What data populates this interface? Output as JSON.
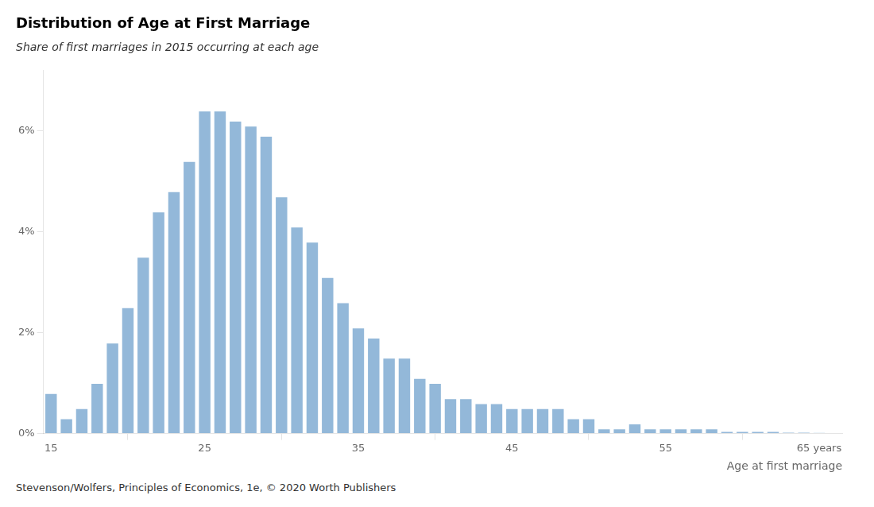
{
  "chart_data": {
    "type": "bar",
    "title": "Distribution of Age at First Marriage",
    "subtitle": "Share of first marriages in 2015 occurring at each age",
    "xlabel": "Age at first marriage",
    "footnote": "Stevenson/Wolfers, Principles of Economics, 1e, © 2020 Worth Publishers",
    "color": "#93b8d9",
    "x": [
      15,
      16,
      17,
      18,
      19,
      20,
      21,
      22,
      23,
      24,
      25,
      26,
      27,
      28,
      29,
      30,
      31,
      32,
      33,
      34,
      35,
      36,
      37,
      38,
      39,
      40,
      41,
      42,
      43,
      44,
      45,
      46,
      47,
      48,
      49,
      50,
      51,
      52,
      53,
      54,
      55,
      56,
      57,
      58,
      59,
      60,
      61,
      62,
      63,
      64,
      65
    ],
    "values": [
      0.008,
      0.003,
      0.005,
      0.01,
      0.018,
      0.025,
      0.035,
      0.044,
      0.048,
      0.054,
      0.064,
      0.064,
      0.062,
      0.061,
      0.059,
      0.047,
      0.041,
      0.038,
      0.031,
      0.026,
      0.021,
      0.019,
      0.015,
      0.015,
      0.011,
      0.01,
      0.007,
      0.007,
      0.006,
      0.006,
      0.005,
      0.005,
      0.005,
      0.005,
      0.003,
      0.003,
      0.001,
      0.001,
      0.002,
      0.001,
      0.001,
      0.001,
      0.001,
      0.001,
      0.0005,
      0.0005,
      0.0005,
      0.0005,
      0.0003,
      0.0003,
      0.0002
    ],
    "xlim": [
      14.5,
      66.5
    ],
    "xticks": [
      15,
      25,
      35,
      45,
      55,
      {
        "value": 65,
        "label": "65 years"
      }
    ],
    "ylim": [
      0,
      0.072
    ],
    "yticks": [
      {
        "value": 0,
        "label": "0%"
      },
      {
        "value": 0.02,
        "label": "2%"
      },
      {
        "value": 0.04,
        "label": "4%"
      },
      {
        "value": 0.06,
        "label": "6%"
      }
    ],
    "grid": false,
    "legend": false
  }
}
